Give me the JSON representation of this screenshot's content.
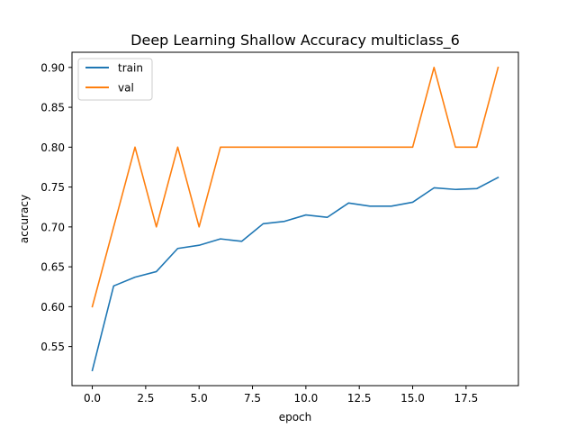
{
  "chart_data": {
    "type": "line",
    "title": "Deep Learning Shallow Accuracy multiclass_6",
    "xlabel": "epoch",
    "ylabel": "accuracy",
    "xlim": [
      -0.95,
      19.95
    ],
    "ylim": [
      0.501,
      0.919
    ],
    "xticks": [
      0.0,
      2.5,
      5.0,
      7.5,
      10.0,
      12.5,
      15.0,
      17.5
    ],
    "xtick_labels": [
      "0.0",
      "2.5",
      "5.0",
      "7.5",
      "10.0",
      "12.5",
      "15.0",
      "17.5"
    ],
    "yticks": [
      0.55,
      0.6,
      0.65,
      0.7,
      0.75,
      0.8,
      0.85,
      0.9
    ],
    "ytick_labels": [
      "0.55",
      "0.60",
      "0.65",
      "0.70",
      "0.75",
      "0.80",
      "0.85",
      "0.90"
    ],
    "grid": false,
    "legend_position": "top-left",
    "x": [
      0,
      1,
      2,
      3,
      4,
      5,
      6,
      7,
      8,
      9,
      10,
      11,
      12,
      13,
      14,
      15,
      16,
      17,
      18,
      19
    ],
    "series": [
      {
        "name": "train",
        "color": "#1f77b4",
        "values": [
          0.52,
          0.626,
          0.637,
          0.644,
          0.673,
          0.677,
          0.685,
          0.682,
          0.704,
          0.707,
          0.715,
          0.712,
          0.73,
          0.726,
          0.726,
          0.731,
          0.749,
          0.747,
          0.748,
          0.762
        ]
      },
      {
        "name": "val",
        "color": "#ff7f0e",
        "values": [
          0.6,
          0.7,
          0.8,
          0.7,
          0.8,
          0.7,
          0.8,
          0.8,
          0.8,
          0.8,
          0.8,
          0.8,
          0.8,
          0.8,
          0.8,
          0.8,
          0.9,
          0.8,
          0.8,
          0.9
        ]
      }
    ]
  }
}
